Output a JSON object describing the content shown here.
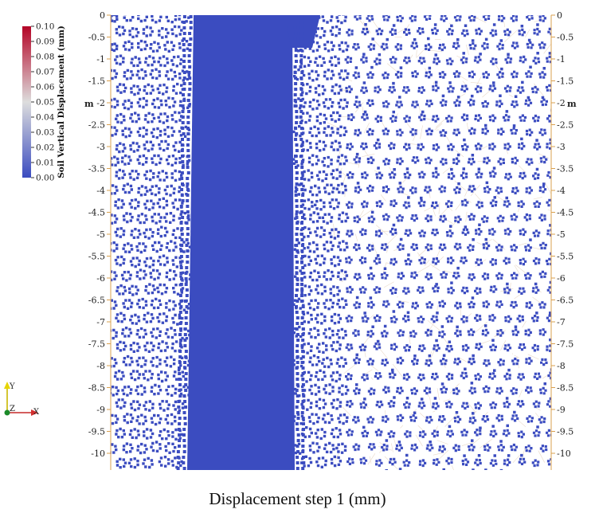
{
  "colorbar": {
    "title": "Soil Vertical Displacement (mm)",
    "ticks": [
      "0.10",
      "0.09",
      "0.08",
      "0.07",
      "0.06",
      "0.05",
      "0.04",
      "0.03",
      "0.02",
      "0.01",
      "0.00"
    ],
    "colors": {
      "high": "#b40426",
      "mid": "#dddddd",
      "low": "#3b4cc0"
    }
  },
  "axes": {
    "unit": "m",
    "ticks": [
      "0",
      "-0.5",
      "-1",
      "-1.5",
      "-2",
      "-2.5",
      "-3",
      "-3.5",
      "-4",
      "-4.5",
      "-5",
      "-5.5",
      "-6",
      "-6.5",
      "-7",
      "-7.5",
      "-8",
      "-8.5",
      "-9",
      "-9.5",
      "-10"
    ],
    "axis_color": "#d9a04f"
  },
  "orientation": {
    "y": "Y",
    "z": "Z",
    "x": "X"
  },
  "particle_color": "#3b4cc0",
  "caption": "Displacement step 1 (mm)"
}
